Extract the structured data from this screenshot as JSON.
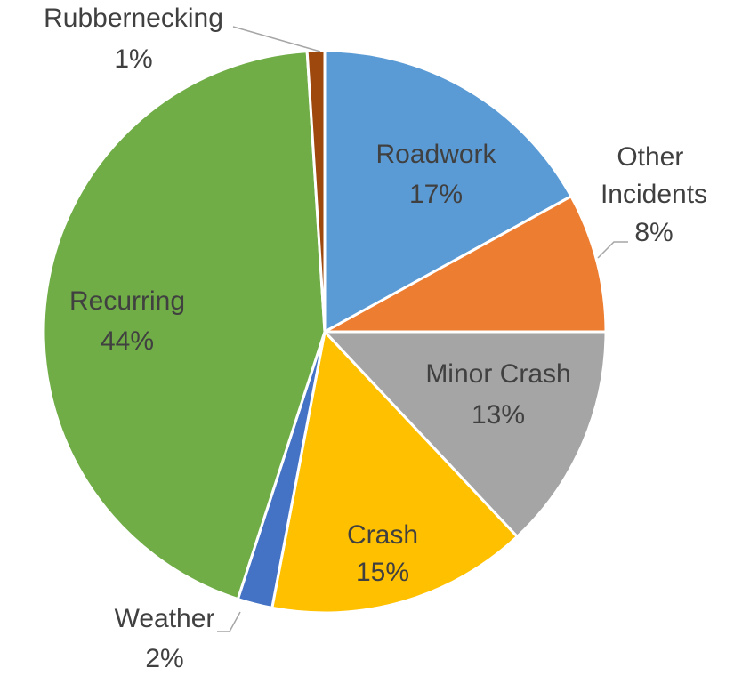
{
  "chart_data": {
    "type": "pie",
    "categories": [
      "Roadwork",
      "Other Incidents",
      "Minor Crash",
      "Crash",
      "Weather",
      "Recurring",
      "Rubbernecking"
    ],
    "values": [
      17,
      8,
      13,
      15,
      2,
      44,
      1
    ],
    "value_labels": [
      "17%",
      "8%",
      "13%",
      "15%",
      "2%",
      "44%",
      "1%"
    ],
    "colors": [
      "#5b9bd5",
      "#ed7d31",
      "#a5a5a5",
      "#ffc000",
      "#4472c4",
      "#70ad47",
      "#9e480e"
    ]
  }
}
